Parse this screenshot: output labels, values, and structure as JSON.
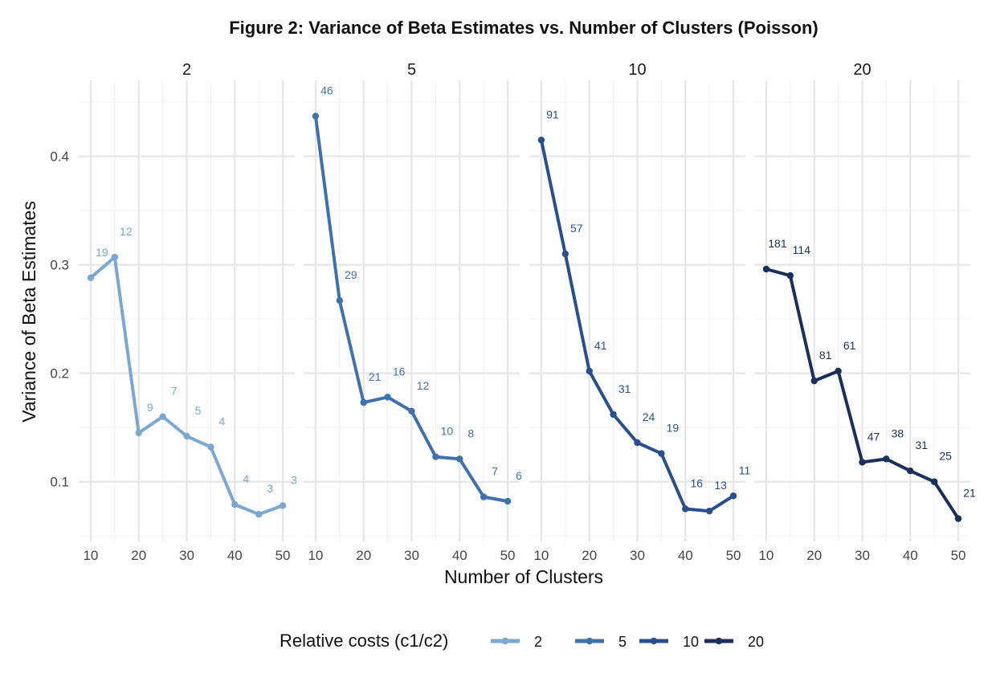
{
  "chart_data": {
    "type": "line",
    "title": "Figure 2: Variance of Beta Estimates vs. Number of Clusters (Poisson)",
    "xlabel": "Number of Clusters",
    "ylabel": "Variance of Beta Estimates",
    "x": [
      10,
      15,
      20,
      25,
      30,
      35,
      40,
      45,
      50
    ],
    "x_ticks": [
      10,
      20,
      30,
      40,
      50
    ],
    "x_tick_labels": [
      "10",
      "20",
      "30",
      "40",
      "50"
    ],
    "xlim": [
      7.5,
      52.5
    ],
    "y_ticks": [
      0.1,
      0.2,
      0.3,
      0.4
    ],
    "y_tick_labels": [
      "0.1",
      "0.2",
      "0.3",
      "0.4"
    ],
    "ylim": [
      0.045,
      0.47
    ],
    "grid": true,
    "legend": {
      "title": "Relative costs (c1/c2)",
      "position": "bottom"
    },
    "series": [
      {
        "name": "2",
        "facet_label": "2",
        "color": "#7aa8d0",
        "values": [
          0.288,
          0.307,
          0.145,
          0.16,
          0.142,
          0.132,
          0.079,
          0.07,
          0.078
        ],
        "point_labels": [
          "19",
          "12",
          "9",
          "7",
          "5",
          "4",
          "4",
          "3",
          "3"
        ]
      },
      {
        "name": "5",
        "facet_label": "5",
        "color": "#3f72ad",
        "values": [
          0.437,
          0.267,
          0.173,
          0.178,
          0.165,
          0.123,
          0.121,
          0.086,
          0.082
        ],
        "point_labels": [
          "46",
          "29",
          "21",
          "16",
          "12",
          "10",
          "8",
          "7",
          "6"
        ]
      },
      {
        "name": "10",
        "facet_label": "10",
        "color": "#28508f",
        "values": [
          0.415,
          0.31,
          0.202,
          0.162,
          0.136,
          0.126,
          0.075,
          0.073,
          0.087
        ],
        "point_labels": [
          "91",
          "57",
          "41",
          "31",
          "24",
          "19",
          "16",
          "13",
          "11"
        ]
      },
      {
        "name": "20",
        "facet_label": "20",
        "color": "#1b2f5c",
        "values": [
          0.296,
          0.29,
          0.193,
          0.202,
          0.118,
          0.121,
          0.11,
          0.1,
          0.066
        ],
        "point_labels": [
          "181",
          "114",
          "81",
          "61",
          "47",
          "38",
          "31",
          "25",
          "21"
        ]
      }
    ]
  }
}
